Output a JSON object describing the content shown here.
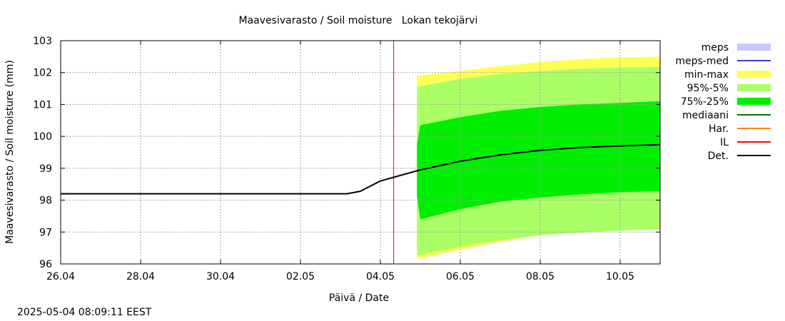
{
  "chart_data": {
    "type": "area",
    "title": "Maavesivarasto / Soil moisture   Lokan tekojärvi",
    "xlabel": "Päivä / Date",
    "ylabel": "Maavesivarasto / Soil moisture (mm)",
    "x_range": [
      "2025-04-26",
      "2025-05-11"
    ],
    "ylim": [
      96,
      103
    ],
    "grid": true,
    "legend_position": "right",
    "x_ticks": [
      {
        "date": "2025-04-26",
        "label": "26.04"
      },
      {
        "date": "2025-04-28",
        "label": "28.04"
      },
      {
        "date": "2025-04-30",
        "label": "30.04"
      },
      {
        "date": "2025-05-02",
        "label": "02.05"
      },
      {
        "date": "2025-05-04",
        "label": "04.05"
      },
      {
        "date": "2025-05-06",
        "label": "06.05"
      },
      {
        "date": "2025-05-08",
        "label": "08.05"
      },
      {
        "date": "2025-05-10",
        "label": "10.05"
      }
    ],
    "y_ticks": [
      96,
      97,
      98,
      99,
      100,
      101,
      102,
      103
    ],
    "now_line": {
      "x": "2025-05-04 08:00",
      "color": "#ff0000"
    },
    "bands": [
      {
        "name": "min-max",
        "color": "#ffff55",
        "x": [
          "2025-05-04 22:00",
          "2025-05-06",
          "2025-05-07",
          "2025-05-08",
          "2025-05-09",
          "2025-05-10",
          "2025-05-11"
        ],
        "upper": [
          101.9,
          102.05,
          102.2,
          102.33,
          102.42,
          102.48,
          102.5
        ],
        "lower": [
          96.15,
          96.45,
          96.7,
          96.9,
          97.0,
          97.1,
          97.15
        ]
      },
      {
        "name": "95%-5%",
        "color": "#aaff66",
        "x": [
          "2025-05-04 22:00",
          "2025-05-06",
          "2025-05-07",
          "2025-05-08",
          "2025-05-09",
          "2025-05-10",
          "2025-05-11"
        ],
        "upper": [
          101.55,
          101.8,
          101.95,
          102.05,
          102.12,
          102.15,
          102.18
        ],
        "lower": [
          96.25,
          96.55,
          96.75,
          96.9,
          96.98,
          97.05,
          97.08
        ]
      },
      {
        "name": "75%-25%",
        "color": "#00ee00",
        "x": [
          "2025-05-04 22:00",
          "2025-05-05",
          "2025-05-06",
          "2025-05-07",
          "2025-05-08",
          "2025-05-09",
          "2025-05-10",
          "2025-05-11"
        ],
        "upper": [
          99.75,
          100.35,
          100.6,
          100.8,
          100.92,
          101.0,
          101.05,
          101.1
        ],
        "lower": [
          98.1,
          97.4,
          97.72,
          97.95,
          98.08,
          98.18,
          98.25,
          98.28
        ]
      }
    ],
    "series": [
      {
        "name": "Det.",
        "color": "#000000",
        "x": [
          "2025-04-26",
          "2025-05-03 04:00",
          "2025-05-03 12:00",
          "2025-05-04",
          "2025-05-05",
          "2025-05-06",
          "2025-05-07",
          "2025-05-08",
          "2025-05-09",
          "2025-05-10",
          "2025-05-11"
        ],
        "y": [
          98.2,
          98.2,
          98.28,
          98.6,
          98.95,
          99.22,
          99.42,
          99.56,
          99.65,
          99.7,
          99.74
        ]
      }
    ],
    "legend": [
      {
        "label": "meps",
        "kind": "box",
        "color": "#c8c8ff"
      },
      {
        "label": "meps-med",
        "kind": "line",
        "color": "#4040c0"
      },
      {
        "label": "min-max",
        "kind": "box",
        "color": "#ffff55"
      },
      {
        "label": "95%-5%",
        "kind": "box",
        "color": "#aaff66"
      },
      {
        "label": "75%-25%",
        "kind": "box",
        "color": "#00ee00"
      },
      {
        "label": "mediaani",
        "kind": "line",
        "color": "#007700"
      },
      {
        "label": "Har.",
        "kind": "line",
        "color": "#ff8800"
      },
      {
        "label": "IL",
        "kind": "line",
        "color": "#ff0000"
      },
      {
        "label": "Det.",
        "kind": "line",
        "color": "#000000"
      }
    ]
  },
  "footer": {
    "timestamp": "2025-05-04 08:09:11 EEST"
  }
}
